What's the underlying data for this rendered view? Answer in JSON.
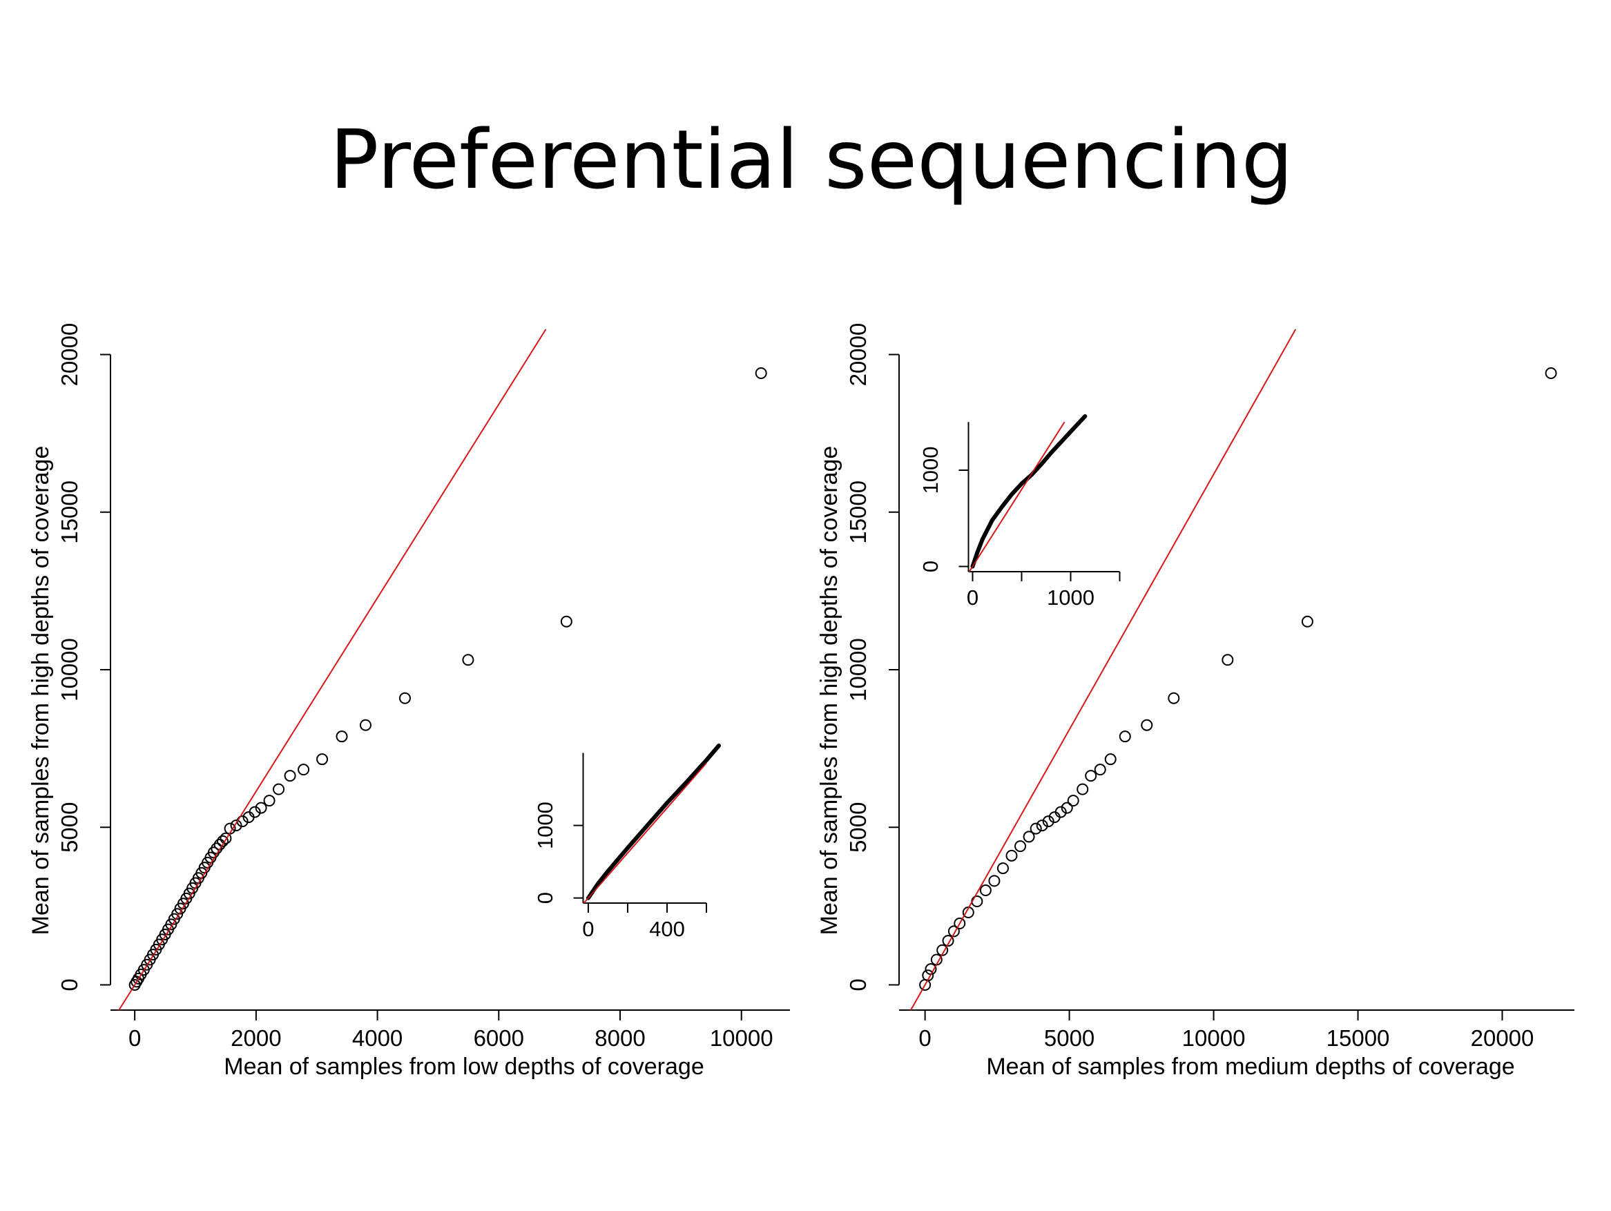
{
  "title": "Preferential sequencing",
  "chart_data": [
    {
      "type": "scatter",
      "x_label": "Mean of samples from low depths of coverage",
      "y_label": "Mean of samples from high depths of coverage",
      "x": [
        0,
        30,
        60,
        100,
        150,
        200,
        250,
        300,
        350,
        400,
        450,
        500,
        550,
        600,
        650,
        700,
        750,
        800,
        850,
        900,
        950,
        1000,
        1050,
        1100,
        1150,
        1200,
        1250,
        1300,
        1350,
        1400,
        1450,
        1500,
        1570,
        1672,
        1775,
        1877,
        1980,
        2082,
        2218,
        2372,
        2560,
        2782,
        3089,
        3413,
        3805,
        4454,
        5495,
        7116,
        10324
      ],
      "y": [
        0,
        100,
        200,
        330,
        480,
        640,
        800,
        960,
        1120,
        1280,
        1440,
        1600,
        1760,
        1920,
        2090,
        2250,
        2420,
        2580,
        2740,
        2900,
        3070,
        3230,
        3390,
        3550,
        3720,
        3880,
        4040,
        4200,
        4330,
        4450,
        4560,
        4650,
        4959,
        5057,
        5189,
        5320,
        5484,
        5616,
        5846,
        6207,
        6634,
        6831,
        7159,
        7882,
        8243,
        9097,
        10312,
        11527,
        19409
      ],
      "color": "#000000",
      "xlim": [
        -400,
        10800
      ],
      "ylim": [
        -800,
        20800
      ],
      "xticks": [
        0,
        2000,
        4000,
        6000,
        8000,
        10000
      ],
      "yticks": [
        0,
        5000,
        10000,
        15000,
        20000
      ],
      "reference_line": {
        "slope": 3.07,
        "color": "#d7191c"
      }
    },
    {
      "type": "line",
      "x": [
        0,
        50,
        100,
        200,
        300,
        400,
        500,
        600,
        663
      ],
      "y": [
        0,
        200,
        370,
        690,
        1000,
        1310,
        1600,
        1900,
        2100
      ],
      "color": "#000000",
      "xlim": [
        -26,
        600
      ],
      "ylim": [
        -70,
        2000
      ],
      "xticks": [
        0,
        400
      ],
      "xminor": [
        200,
        600
      ],
      "yticks": [
        0,
        1000
      ],
      "reference_line": {
        "slope": 3.1,
        "color": "#d7191c"
      }
    },
    {
      "type": "scatter",
      "x_label": "Mean of samples from medium depths of coverage",
      "y_label": "Mean of samples from high depths of coverage",
      "x": [
        0,
        100,
        200,
        400,
        600,
        800,
        1000,
        1200,
        1500,
        1800,
        2100,
        2400,
        2700,
        3000,
        3300,
        3600,
        3842,
        4057,
        4273,
        4488,
        4704,
        4919,
        5135,
        5458,
        5745,
        6068,
        6427,
        6930,
        7684,
        8618,
        10485,
        13250,
        21688
      ],
      "y": [
        0,
        300,
        500,
        800,
        1100,
        1400,
        1700,
        1950,
        2300,
        2650,
        3000,
        3300,
        3700,
        4100,
        4400,
        4700,
        4959,
        5057,
        5189,
        5320,
        5484,
        5616,
        5846,
        6207,
        6634,
        6831,
        7159,
        7882,
        8243,
        9097,
        10312,
        11527,
        19409
      ],
      "color": "#000000",
      "xlim": [
        -900,
        22500
      ],
      "ylim": [
        -800,
        20800
      ],
      "xticks": [
        0,
        5000,
        10000,
        15000,
        20000
      ],
      "yticks": [
        0,
        5000,
        10000,
        15000,
        20000
      ],
      "reference_line": {
        "slope": 1.62,
        "color": "#d7191c"
      }
    },
    {
      "type": "line",
      "x": [
        0,
        50,
        100,
        200,
        300,
        400,
        500,
        600,
        700,
        800,
        900,
        1000,
        1147
      ],
      "y": [
        0,
        150,
        280,
        480,
        620,
        750,
        860,
        950,
        1060,
        1180,
        1290,
        1400,
        1560
      ],
      "color": "#000000",
      "xlim": [
        -42,
        1500
      ],
      "ylim": [
        -54,
        1500
      ],
      "xticks": [
        0,
        1000
      ],
      "xminor": [
        500,
        1500
      ],
      "yticks": [
        0,
        1000
      ],
      "reference_line": {
        "slope": 1.6,
        "color": "#d7191c"
      }
    }
  ]
}
